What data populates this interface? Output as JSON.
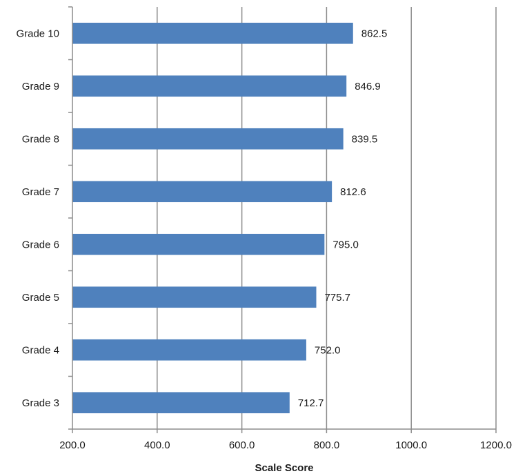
{
  "chart_data": {
    "type": "bar",
    "orientation": "horizontal",
    "categories": [
      "Grade 10",
      "Grade 9",
      "Grade 8",
      "Grade 7",
      "Grade 6",
      "Grade 5",
      "Grade 4",
      "Grade 3"
    ],
    "values": [
      862.5,
      846.9,
      839.5,
      812.6,
      795.0,
      775.7,
      752.0,
      712.7
    ],
    "data_labels": [
      "862.5",
      "846.9",
      "839.5",
      "812.6",
      "795.0",
      "775.7",
      "752.0",
      "712.7"
    ],
    "title": "",
    "xlabel": "Scale Score",
    "ylabel": "",
    "xlim": [
      200,
      1200
    ],
    "xticks": [
      200,
      400,
      600,
      800,
      1000,
      1200
    ],
    "xtick_labels": [
      "200.0",
      "400.0",
      "600.0",
      "800.0",
      "1000.0",
      "1200.0"
    ],
    "grid": "vertical",
    "legend": "none",
    "colors": {
      "bar": "#4f81bd",
      "grid": "#8c8c8c",
      "axis": "#8c8c8c"
    }
  }
}
